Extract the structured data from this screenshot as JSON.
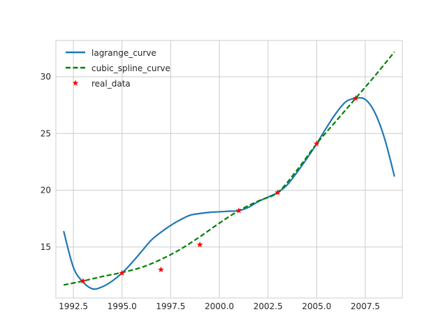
{
  "chart_data": {
    "type": "line",
    "title": "",
    "xlabel": "",
    "ylabel": "",
    "xlim": [
      1991.6,
      2009.4
    ],
    "ylim": [
      10.5,
      33.2
    ],
    "x_ticks": [
      1992.5,
      1995.0,
      1997.5,
      2000.0,
      2002.5,
      2005.0,
      2007.5
    ],
    "x_tick_labels": [
      "1992.5",
      "1995.0",
      "1997.5",
      "2000.0",
      "2002.5",
      "2005.0",
      "2007.5"
    ],
    "y_ticks": [
      15,
      20,
      25,
      30
    ],
    "y_tick_labels": [
      "15",
      "20",
      "25",
      "30"
    ],
    "grid": true,
    "legend_placement": "top-left",
    "series": [
      {
        "name": "lagrange_curve",
        "style": "solid",
        "color": "#1f77b4",
        "x": [
          1992.0,
          1992.5,
          1993.0,
          1993.5,
          1994.0,
          1994.5,
          1995.0,
          1995.5,
          1996.0,
          1996.5,
          1997.0,
          1997.5,
          1998.0,
          1998.5,
          1999.0,
          1999.5,
          2000.0,
          2000.5,
          2001.0,
          2001.5,
          2002.0,
          2002.5,
          2003.0,
          2003.5,
          2004.0,
          2004.5,
          2005.0,
          2005.5,
          2006.0,
          2006.5,
          2007.0,
          2007.5,
          2008.0,
          2008.5,
          2009.0
        ],
        "y": [
          16.4,
          13.2,
          11.9,
          11.3,
          11.5,
          12.0,
          12.7,
          13.6,
          14.6,
          15.6,
          16.3,
          16.9,
          17.4,
          17.8,
          17.95,
          18.05,
          18.1,
          18.15,
          18.2,
          18.5,
          19.0,
          19.4,
          19.8,
          20.5,
          21.6,
          22.8,
          24.1,
          25.5,
          26.8,
          27.8,
          28.1,
          28.0,
          26.8,
          24.5,
          21.2
        ]
      },
      {
        "name": "cubic_spline_curve",
        "style": "dashed",
        "color": "#008000",
        "x": [
          1992.0,
          1993.0,
          1994.0,
          1995.0,
          1996.0,
          1997.0,
          1998.0,
          1999.0,
          2000.0,
          2001.0,
          2002.0,
          2003.0,
          2004.0,
          2005.0,
          2006.0,
          2007.0,
          2008.0,
          2009.0
        ],
        "y": [
          11.65,
          12.0,
          12.4,
          12.75,
          13.2,
          13.9,
          14.8,
          15.9,
          17.1,
          18.2,
          19.05,
          19.8,
          21.8,
          24.1,
          26.1,
          28.1,
          30.1,
          32.2
        ]
      }
    ],
    "scatter": {
      "name": "real_data",
      "marker": "star",
      "color": "#ff0000",
      "x": [
        1993,
        1995,
        1997,
        1999,
        2001,
        2003,
        2005,
        2007
      ],
      "y": [
        12.0,
        12.7,
        13.0,
        15.2,
        18.2,
        19.8,
        24.1,
        28.1
      ]
    }
  }
}
